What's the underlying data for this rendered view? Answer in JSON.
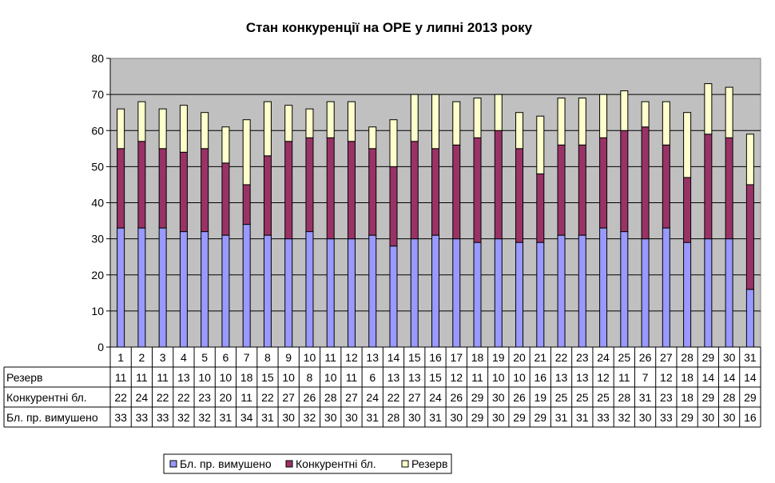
{
  "chart_data": {
    "type": "bar",
    "stacked": true,
    "title": "Стан конкуренції на ОРЕ  у липні 2013 року",
    "xlabel": "",
    "ylabel": "",
    "ylim": [
      0,
      80
    ],
    "yticks": [
      "0",
      "10",
      "20",
      "30",
      "40",
      "50",
      "60",
      "70",
      "80"
    ],
    "grid": true,
    "legend": "bottom",
    "categories": [
      "1",
      "2",
      "3",
      "4",
      "5",
      "6",
      "7",
      "8",
      "9",
      "10",
      "11",
      "12",
      "13",
      "14",
      "15",
      "16",
      "17",
      "18",
      "19",
      "20",
      "21",
      "22",
      "23",
      "24",
      "25",
      "26",
      "27",
      "28",
      "29",
      "30",
      "31"
    ],
    "series": [
      {
        "name": "Бл. пр. вимушено",
        "color": "#9999ff",
        "values": [
          33,
          33,
          33,
          32,
          32,
          31,
          34,
          31,
          30,
          32,
          30,
          30,
          31,
          28,
          30,
          31,
          30,
          29,
          30,
          29,
          29,
          31,
          31,
          33,
          32,
          30,
          33,
          29,
          30,
          30,
          16
        ]
      },
      {
        "name": "Конкурентні бл.",
        "color": "#993366",
        "values": [
          22,
          24,
          22,
          22,
          23,
          20,
          11,
          22,
          27,
          26,
          28,
          27,
          24,
          22,
          27,
          24,
          26,
          29,
          30,
          26,
          19,
          25,
          25,
          25,
          28,
          31,
          23,
          18,
          29,
          28,
          29
        ]
      },
      {
        "name": "Резерв",
        "color": "#ffffcc",
        "values": [
          11,
          11,
          11,
          13,
          10,
          10,
          18,
          15,
          10,
          8,
          10,
          11,
          6,
          13,
          13,
          15,
          12,
          11,
          10,
          10,
          16,
          13,
          13,
          12,
          11,
          7,
          12,
          18,
          14,
          14,
          14
        ]
      }
    ],
    "table_rows": [
      "Резерв",
      "Конкурентні бл.",
      "Бл. пр. вимушено"
    ],
    "legend_order": [
      "Бл. пр. вимушено",
      "Конкурентні бл.",
      "Резерв"
    ]
  }
}
